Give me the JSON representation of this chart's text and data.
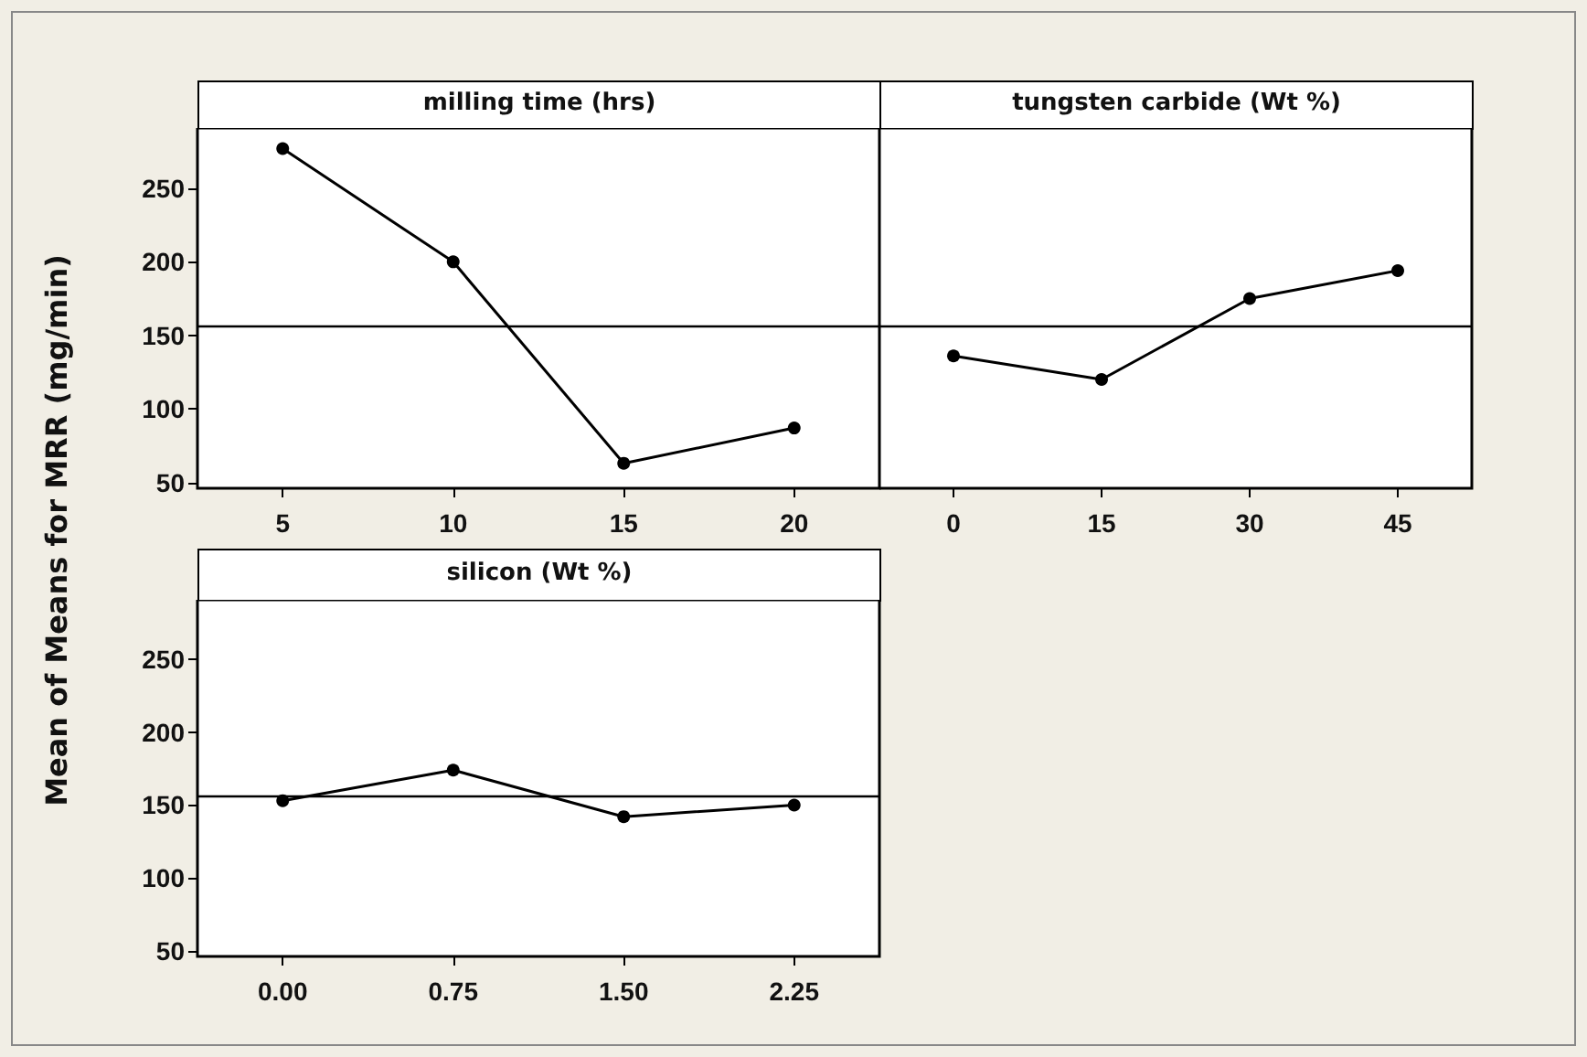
{
  "chart_data": [
    {
      "type": "line",
      "title": "milling time (hrs)",
      "ylabel": "Mean of Means for MRR (mg/min)",
      "categories": [
        "5",
        "10",
        "15",
        "20"
      ],
      "series": [
        {
          "color": "#000000",
          "values": [
            277,
            200,
            63,
            87
          ]
        }
      ],
      "ylim": [
        46,
        291
      ],
      "yticks": [
        50,
        100,
        150,
        200,
        250
      ],
      "ref_lines": [
        {
          "axis": "y",
          "value": 156,
          "color": "#000000"
        }
      ],
      "marker": "circle",
      "grid": false
    },
    {
      "type": "line",
      "title": "tungsten carbide (Wt %)",
      "categories": [
        "0",
        "15",
        "30",
        "45"
      ],
      "series": [
        {
          "color": "#000000",
          "values": [
            136,
            120,
            175,
            194
          ]
        }
      ],
      "ylim": [
        46,
        291
      ],
      "yticks": [
        50,
        100,
        150,
        200,
        250
      ],
      "ref_lines": [
        {
          "axis": "y",
          "value": 156,
          "color": "#000000"
        }
      ],
      "marker": "circle",
      "grid": false,
      "tick_labels": "x"
    },
    {
      "type": "line",
      "title": "silicon (Wt %)",
      "categories": [
        "0.00",
        "0.75",
        "1.50",
        "2.25"
      ],
      "series": [
        {
          "color": "#000000",
          "values": [
            153,
            174,
            142,
            150
          ]
        }
      ],
      "ylim": [
        46,
        291
      ],
      "yticks": [
        50,
        100,
        150,
        200,
        250
      ],
      "ref_lines": [
        {
          "axis": "y",
          "value": 156,
          "color": "#000000"
        }
      ],
      "marker": "circle",
      "grid": false
    }
  ]
}
